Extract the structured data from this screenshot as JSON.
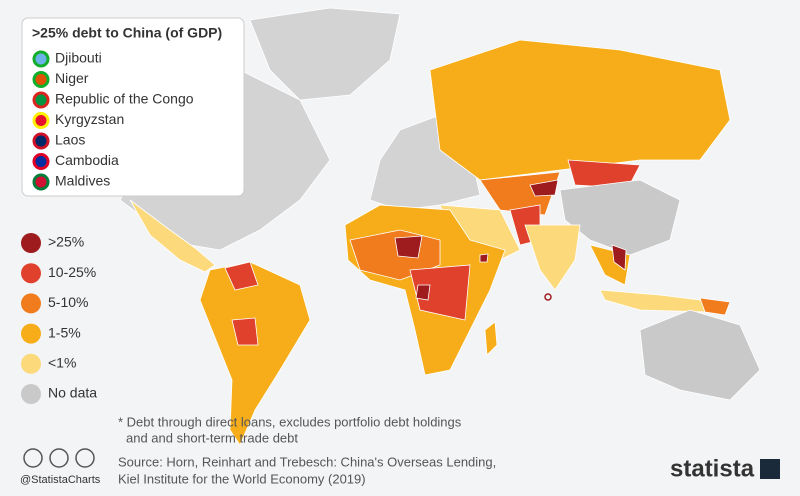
{
  "title_box": {
    "title": ">25% debt to China (of GDP)",
    "countries": [
      "Djibouti",
      "Niger",
      "Republic of the Congo",
      "Kyrgyzstan",
      "Laos",
      "Cambodia",
      "Maldives"
    ]
  },
  "legend": [
    {
      "label": ">25%",
      "color": "#9e1b1e"
    },
    {
      "label": "10-25%",
      "color": "#e0412c"
    },
    {
      "label": "5-10%",
      "color": "#f07c1e"
    },
    {
      "label": "1-5%",
      "color": "#f7ad19"
    },
    {
      "label": "<1%",
      "color": "#fcd97a"
    },
    {
      "label": "No data",
      "color": "#c9c9c9"
    }
  ],
  "footnote": [
    "* Debt through direct loans, excludes portfolio debt holdings",
    "and and short-term trade debt"
  ],
  "credit": "@StatistaCharts",
  "source": [
    "Source: Horn, Reinhart and Trebesch: China's Overseas Lending,",
    "Kiel Institute for the World Economy (2019)"
  ],
  "brand": "statista"
}
